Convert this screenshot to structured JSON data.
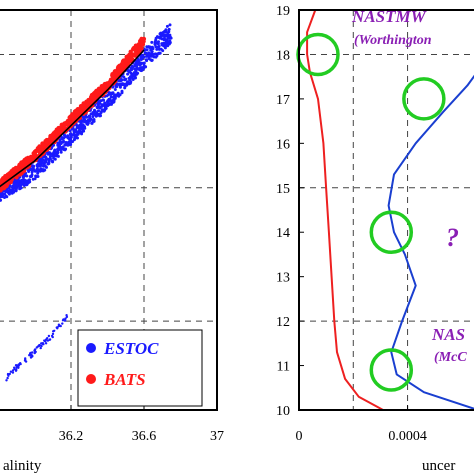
{
  "chart_data": [
    {
      "type": "scatter",
      "xlabel": "alinity",
      "xlim": [
        35.8,
        37.0
      ],
      "ylim": [
        10,
        19
      ],
      "xticks": [
        "36.2",
        "36.6",
        "37"
      ],
      "grid": true,
      "legend_position": "bottom-right",
      "series": [
        {
          "name": "ESTOC",
          "color": "#1a1aff",
          "x": [
            35.8,
            36.0,
            36.2,
            36.4,
            36.6,
            36.75
          ],
          "y": [
            14.9,
            15.4,
            16.2,
            17.0,
            17.9,
            18.5
          ]
        },
        {
          "name": "BATS",
          "color": "#ff1a1a",
          "x": [
            35.8,
            36.0,
            36.2,
            36.4,
            36.6
          ],
          "y": [
            15.0,
            15.7,
            16.5,
            17.3,
            18.3
          ]
        },
        {
          "name": "",
          "color": "#000000",
          "x": [
            35.8,
            36.0,
            36.2,
            36.4,
            36.6
          ],
          "y": [
            15.0,
            15.6,
            16.4,
            17.2,
            18.1
          ]
        },
        {
          "name": "",
          "color": "#1a1aff",
          "x": [
            35.84,
            35.9,
            36.0,
            36.1,
            36.18
          ],
          "y": [
            10.7,
            10.95,
            11.3,
            11.7,
            12.1
          ]
        }
      ]
    },
    {
      "type": "line",
      "xlabel": "uncer",
      "xlim": [
        0,
        0.0007
      ],
      "ylim": [
        10,
        19
      ],
      "xticks": [
        "0",
        "0.0004"
      ],
      "yticks": [
        "10",
        "11",
        "12",
        "13",
        "14",
        "15",
        "16",
        "17",
        "18",
        "19"
      ],
      "grid": true,
      "series": [
        {
          "name": "",
          "color": "#ee2020",
          "x": [
            0.00031,
            0.00022,
            0.00017,
            0.00014,
            0.00013,
            0.00012,
            0.00011,
            0.0001,
            9e-05,
            7e-05,
            4e-05,
            3e-05,
            3e-05,
            6e-05
          ],
          "y": [
            10.0,
            10.3,
            10.7,
            11.3,
            12.0,
            13.0,
            14.0,
            15.0,
            16.0,
            17.0,
            17.6,
            18.0,
            18.5,
            19.0
          ]
        },
        {
          "name": "",
          "color": "#1a3fd0",
          "x": [
            0.00066,
            0.00046,
            0.00036,
            0.00034,
            0.00038,
            0.00043,
            0.00039,
            0.00035,
            0.00033,
            0.00035,
            0.00043,
            0.00053,
            0.00062,
            0.00068
          ],
          "y": [
            10.0,
            10.4,
            10.8,
            11.3,
            12.0,
            12.8,
            13.5,
            14.0,
            14.6,
            15.3,
            16.0,
            16.7,
            17.3,
            17.8
          ]
        }
      ],
      "annotations": {
        "nastmw_top": "NASTMW",
        "worthington": "(Worthington",
        "question": "?",
        "nast_bottom": "NAS",
        "mcc": "(McC"
      },
      "highlight_circles": [
        {
          "x": 7e-05,
          "y": 18.0
        },
        {
          "x": 0.00046,
          "y": 17.0
        },
        {
          "x": 0.00034,
          "y": 14.0
        },
        {
          "x": 0.00034,
          "y": 10.9
        }
      ]
    }
  ]
}
